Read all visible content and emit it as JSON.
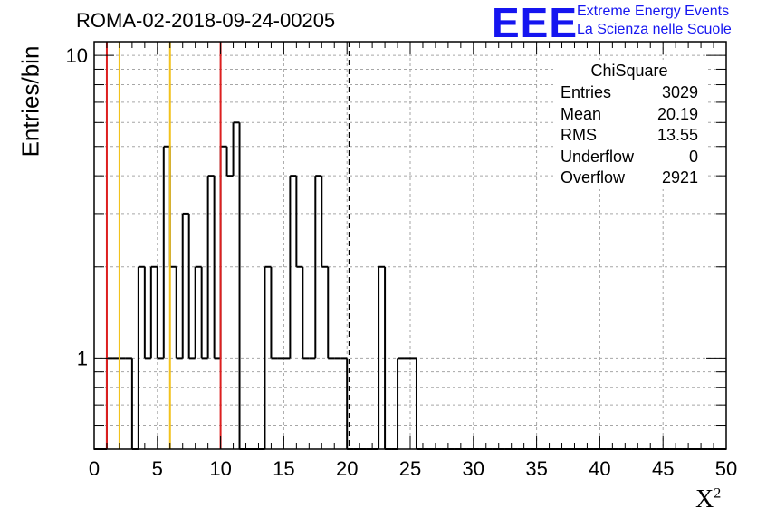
{
  "header": {
    "title": "ROMA-02-2018-09-24-00205",
    "logo": "EEE",
    "org_line1": "Extreme Energy Events",
    "org_line2": "La Scienza nelle Scuole"
  },
  "stats_box": {
    "title": "ChiSquare",
    "rows": [
      {
        "label": "Entries",
        "value": "3029"
      },
      {
        "label": "Mean",
        "value": "20.19"
      },
      {
        "label": "RMS",
        "value": "13.55"
      },
      {
        "label": "Underflow",
        "value": "0"
      },
      {
        "label": "Overflow",
        "value": "2921"
      }
    ]
  },
  "colors": {
    "histogram": "#000000",
    "red_lines": "#dd1f1f",
    "orange_lines": "#f2c21c",
    "grid": "#a6a6a6",
    "logo": "#1515f0"
  },
  "chart_data": {
    "type": "bar",
    "histtype": "step",
    "title": "ROMA-02-2018-09-24-00205",
    "xlabel": "X",
    "xlabel_superscript": "2",
    "ylabel": "Entries/bin",
    "xlim": [
      0,
      50
    ],
    "ylim": [
      0.5,
      11.1
    ],
    "yscale": "log",
    "grid": true,
    "bin_width": 0.5,
    "x_ticks": [
      0,
      5,
      10,
      15,
      20,
      25,
      30,
      35,
      40,
      45,
      50
    ],
    "y_ticks": [
      1,
      10
    ],
    "bin_edges_start": 0,
    "values": [
      0,
      0,
      1,
      1,
      1,
      1,
      0,
      2,
      1,
      2,
      1,
      5,
      2,
      1,
      3,
      1,
      2,
      1,
      4,
      1,
      5,
      4,
      6,
      0,
      0,
      0,
      0,
      2,
      1,
      1,
      1,
      4,
      2,
      1,
      1,
      4,
      2,
      1,
      1,
      1,
      0,
      0,
      0,
      0,
      0,
      2,
      0,
      0,
      1,
      1,
      1,
      0,
      0,
      0,
      0,
      0,
      0,
      0,
      0,
      0,
      0,
      0,
      0,
      0,
      0,
      0,
      0,
      0,
      0,
      0,
      0,
      0,
      0,
      0,
      0,
      0,
      0,
      0,
      0,
      0,
      0,
      0,
      0,
      0,
      0,
      0,
      0,
      0,
      0,
      0,
      0,
      0,
      0,
      0,
      0,
      0,
      0,
      0,
      0,
      0
    ],
    "reference_lines": [
      {
        "x": 1,
        "color": "red"
      },
      {
        "x": 2,
        "color": "orange"
      },
      {
        "x": 6,
        "color": "orange"
      },
      {
        "x": 10,
        "color": "red"
      },
      {
        "x": 20.19,
        "color": "black",
        "style": "dashed"
      }
    ]
  }
}
